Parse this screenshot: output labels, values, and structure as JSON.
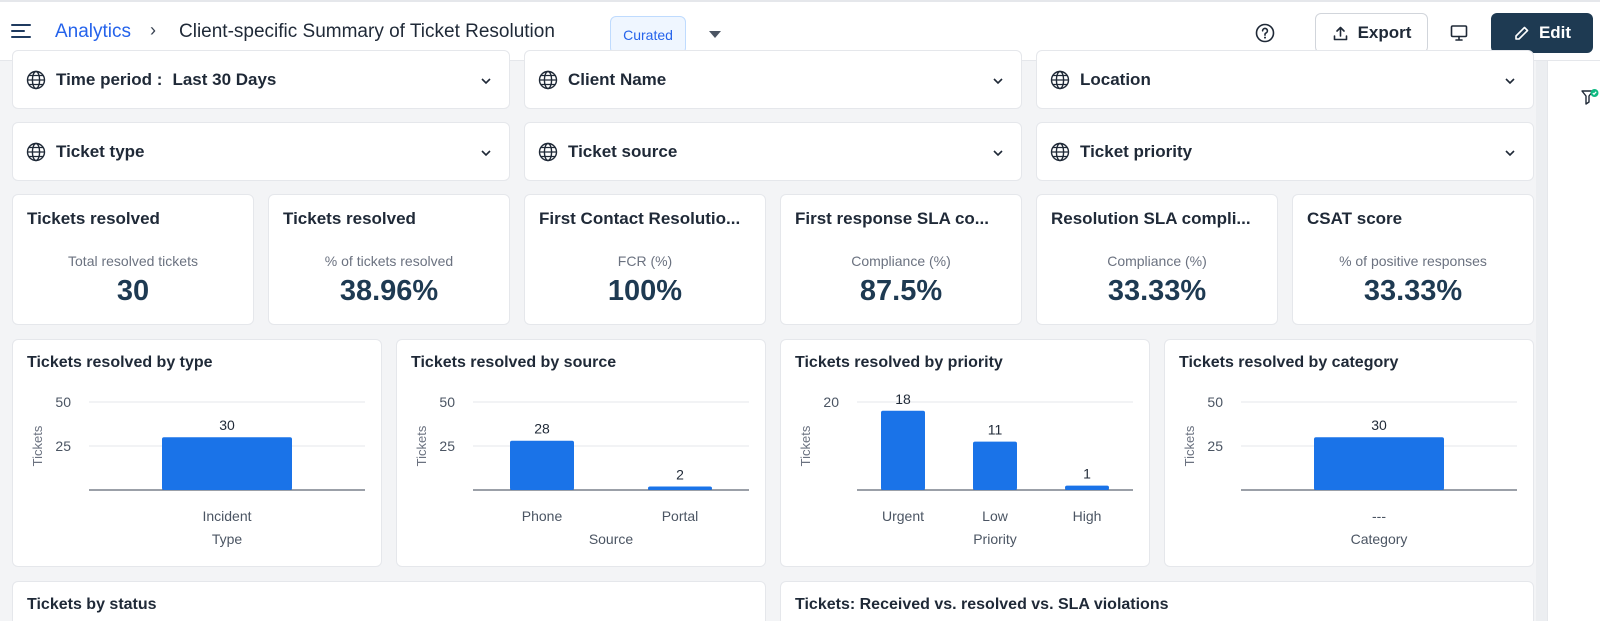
{
  "header": {
    "breadcrumb_root": "Analytics",
    "breadcrumb_sep": "›",
    "title": "Client-specific Summary of Ticket Resolution",
    "curated_badge": "Curated",
    "export_label": "Export",
    "edit_label": "Edit"
  },
  "filters": {
    "time_period_label": "Time period :",
    "time_period_value": "Last 30 Days",
    "client_name": "Client Name",
    "location": "Location",
    "ticket_type": "Ticket type",
    "ticket_source": "Ticket source",
    "ticket_priority": "Ticket priority"
  },
  "kpis": [
    {
      "title": "Tickets resolved",
      "subtitle": "Total resolved tickets",
      "value": "30"
    },
    {
      "title": "Tickets resolved",
      "subtitle": "% of tickets resolved",
      "value": "38.96%"
    },
    {
      "title": "First Contact Resolutio...",
      "subtitle": "FCR (%)",
      "value": "100%"
    },
    {
      "title": "First response SLA co...",
      "subtitle": "Compliance (%)",
      "value": "87.5%"
    },
    {
      "title": "Resolution SLA compli...",
      "subtitle": "Compliance (%)",
      "value": "33.33%"
    },
    {
      "title": "CSAT score",
      "subtitle": "% of positive responses",
      "value": "33.33%"
    }
  ],
  "chart_data": [
    {
      "type": "bar",
      "title": "Tickets resolved by type",
      "categories": [
        "Incident"
      ],
      "values": [
        30
      ],
      "xlabel": "Type",
      "ylabel": "Tickets",
      "yticks": [
        25,
        50
      ],
      "ylim": [
        0,
        50
      ]
    },
    {
      "type": "bar",
      "title": "Tickets resolved by source",
      "categories": [
        "Phone",
        "Portal"
      ],
      "values": [
        28,
        2
      ],
      "xlabel": "Source",
      "ylabel": "Tickets",
      "yticks": [
        25,
        50
      ],
      "ylim": [
        0,
        50
      ]
    },
    {
      "type": "bar",
      "title": "Tickets resolved by priority",
      "categories": [
        "Urgent",
        "Low",
        "High"
      ],
      "values": [
        18,
        11,
        1
      ],
      "xlabel": "Priority",
      "ylabel": "Tickets",
      "yticks": [
        20
      ],
      "ylim": [
        0,
        20
      ]
    },
    {
      "type": "bar",
      "title": "Tickets resolved by category",
      "categories": [
        "---"
      ],
      "values": [
        30
      ],
      "xlabel": "Category",
      "ylabel": "Tickets",
      "yticks": [
        25,
        50
      ],
      "ylim": [
        0,
        50
      ]
    }
  ],
  "bottom_cards": {
    "status_title": "Tickets by status",
    "received_title": "Tickets: Received vs. resolved vs. SLA violations"
  },
  "colors": {
    "bar": "#1a73e8",
    "accent": "#2563eb",
    "edit_bg": "#1e3a52"
  }
}
